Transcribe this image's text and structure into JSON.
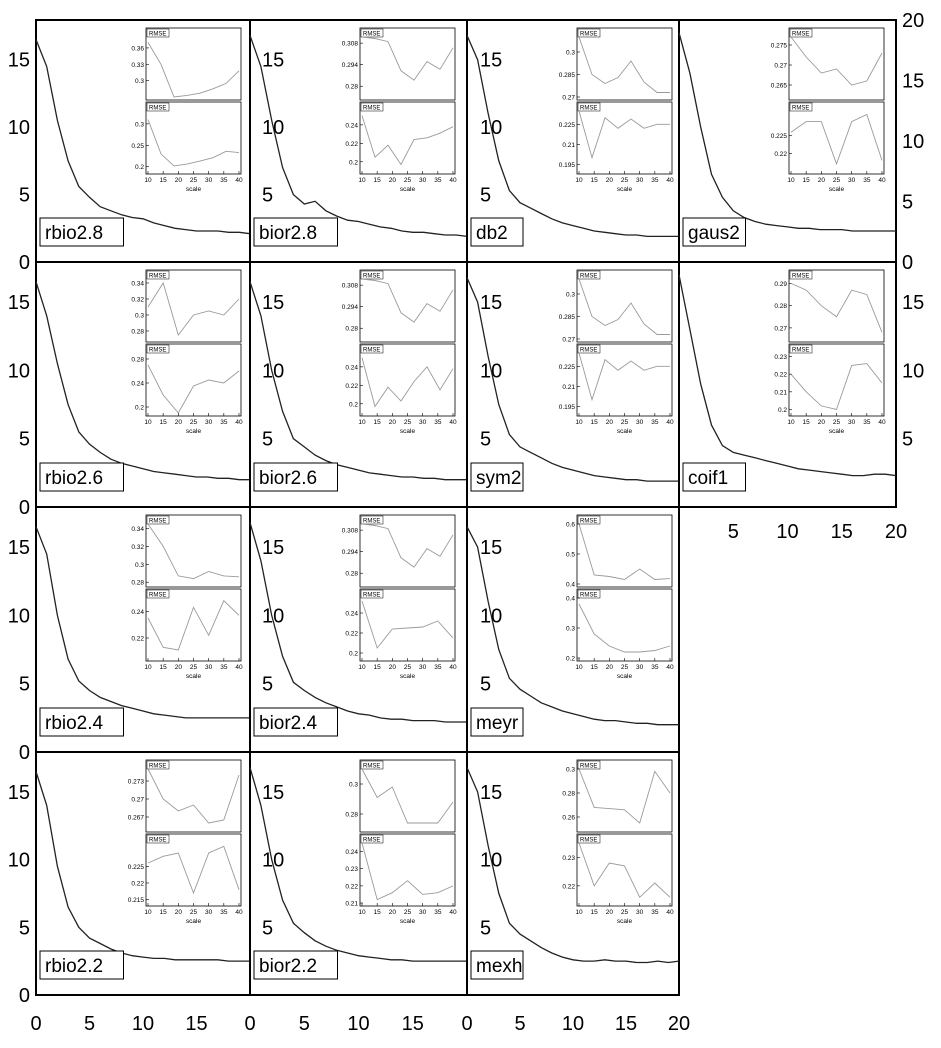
{
  "chart_data": {
    "type": "line",
    "main_x_ticks": [
      0,
      5,
      10,
      15
    ],
    "main_x_ticks_20": [
      5,
      10,
      15,
      20
    ],
    "main_x_ticks_0_20": [
      0,
      5,
      10,
      15,
      20
    ],
    "main_y_ticks": [
      0,
      5,
      10,
      15
    ],
    "main_y_ticks_right": [
      0,
      5,
      10,
      15,
      20
    ],
    "main_y_ticks_right_17": [
      5,
      10,
      15
    ],
    "inset_x_ticks": [
      10,
      15,
      20,
      25,
      30,
      35,
      40
    ],
    "inset_xlabel": "scale",
    "inset_tag": "RMSE",
    "panels": [
      {
        "id": "rbio2.8",
        "label": "rbio2.8",
        "curve": [
          16.5,
          14.5,
          10.5,
          7.5,
          5.6,
          4.8,
          4.1,
          3.8,
          3.5,
          3.3,
          3.2,
          2.9,
          2.7,
          2.5,
          2.4,
          2.3,
          2.3,
          2.3,
          2.2,
          2.2,
          2.1
        ],
        "inset_top": {
          "ticks": [
            0.36,
            0.33,
            0.3
          ],
          "ylim": [
            0.27,
            0.38
          ],
          "values": [
            0.37,
            0.33,
            0.27,
            0.273,
            0.277,
            0.285,
            0.295,
            0.318
          ]
        },
        "inset_bottom": {
          "ticks": [
            0.3,
            0.25,
            0.2
          ],
          "ylim": [
            0.19,
            0.33
          ],
          "values": [
            0.31,
            0.23,
            0.202,
            0.206,
            0.213,
            0.221,
            0.236,
            0.233
          ]
        }
      },
      {
        "id": "bior2.8",
        "label": "bior2.8",
        "curve": [
          16.8,
          14.5,
          10.5,
          7,
          5,
          4.3,
          4.5,
          3.8,
          3.4,
          3.1,
          3,
          2.8,
          2.6,
          2.5,
          2.3,
          2.2,
          2.2,
          2.1,
          2,
          2,
          1.9
        ],
        "inset_top": {
          "ticks": [
            0.308,
            0.294,
            0.28
          ],
          "ylim": [
            0.273,
            0.312
          ],
          "values": [
            0.312,
            0.311,
            0.309,
            0.29,
            0.284,
            0.296,
            0.291,
            0.305
          ]
        },
        "inset_bottom": {
          "ticks": [
            0.24,
            0.22,
            0.2
          ],
          "ylim": [
            0.19,
            0.255
          ],
          "values": [
            0.25,
            0.205,
            0.218,
            0.197,
            0.224,
            0.226,
            0.231,
            0.238
          ]
        }
      },
      {
        "id": "db2",
        "label": "db2",
        "curve": [
          16.8,
          15,
          11,
          7.5,
          5.3,
          4.4,
          4,
          3.6,
          3.2,
          2.9,
          2.7,
          2.5,
          2.3,
          2.2,
          2.1,
          2,
          2,
          1.9,
          1.9,
          1.9,
          1.9
        ],
        "inset_top": {
          "ticks": [
            0.3,
            0.285,
            0.27
          ],
          "ylim": [
            0.27,
            0.31
          ],
          "values": [
            0.31,
            0.285,
            0.279,
            0.283,
            0.294,
            0.28,
            0.273,
            0.273
          ]
        },
        "inset_bottom": {
          "ticks": [
            0.225,
            0.21,
            0.195
          ],
          "ylim": [
            0.19,
            0.235
          ],
          "values": [
            0.235,
            0.2,
            0.23,
            0.222,
            0.229,
            0.222,
            0.225,
            0.225
          ]
        }
      },
      {
        "id": "gaus2",
        "label": "gaus2",
        "curve": [
          17,
          14,
          10,
          6.5,
          4.8,
          3.8,
          3.3,
          3,
          2.8,
          2.7,
          2.6,
          2.5,
          2.5,
          2.4,
          2.4,
          2.4,
          2.3,
          2.3,
          2.3,
          2.3,
          2.3
        ],
        "inset_top": {
          "ticks": [
            0.275,
            0.27,
            0.265
          ],
          "ylim": [
            0.262,
            0.277
          ],
          "values": [
            0.277,
            0.272,
            0.268,
            0.269,
            0.265,
            0.266,
            0.273
          ]
        },
        "inset_bottom": {
          "ticks": [
            0.225,
            0.22
          ],
          "ylim": [
            0.215,
            0.232
          ],
          "values": [
            0.226,
            0.229,
            0.229,
            0.217,
            0.229,
            0.231,
            0.218
          ]
        }
      },
      {
        "id": "rbio2.6",
        "label": "rbio2.6",
        "curve": [
          16.5,
          14,
          10.5,
          7.5,
          5.5,
          4.6,
          4,
          3.5,
          3.2,
          3,
          2.8,
          2.6,
          2.5,
          2.4,
          2.3,
          2.2,
          2.2,
          2.1,
          2.1,
          2,
          2
        ],
        "inset_top": {
          "ticks": [
            0.34,
            0.32,
            0.3,
            0.28
          ],
          "ylim": [
            0.27,
            0.345
          ],
          "values": [
            0.31,
            0.34,
            0.275,
            0.3,
            0.305,
            0.3,
            0.32
          ]
        },
        "inset_bottom": {
          "ticks": [
            0.28,
            0.24,
            0.2
          ],
          "ylim": [
            0.19,
            0.29
          ],
          "values": [
            0.27,
            0.22,
            0.19,
            0.235,
            0.245,
            0.24,
            0.26
          ]
        }
      },
      {
        "id": "bior2.6",
        "label": "bior2.6",
        "curve": [
          16.5,
          14,
          10,
          7,
          5,
          4.4,
          3.8,
          3.4,
          3.1,
          2.9,
          2.7,
          2.5,
          2.4,
          2.3,
          2.2,
          2.2,
          2.1,
          2.1,
          2,
          2,
          2
        ],
        "inset_top": {
          "ticks": [
            0.308,
            0.294,
            0.28
          ],
          "ylim": [
            0.273,
            0.312
          ],
          "values": [
            0.312,
            0.311,
            0.309,
            0.29,
            0.284,
            0.296,
            0.291,
            0.305
          ]
        },
        "inset_bottom": {
          "ticks": [
            0.24,
            0.22,
            0.2
          ],
          "ylim": [
            0.19,
            0.255
          ],
          "values": [
            0.25,
            0.197,
            0.218,
            0.203,
            0.224,
            0.24,
            0.215,
            0.238
          ]
        }
      },
      {
        "id": "sym2",
        "label": "sym2",
        "curve": [
          16.8,
          15,
          11,
          7.5,
          5.3,
          4.4,
          4,
          3.6,
          3.2,
          2.9,
          2.7,
          2.5,
          2.3,
          2.2,
          2.1,
          2,
          2,
          1.9,
          1.9,
          1.9,
          1.9
        ],
        "inset_top": {
          "ticks": [
            0.3,
            0.285,
            0.27
          ],
          "ylim": [
            0.27,
            0.31
          ],
          "values": [
            0.31,
            0.285,
            0.279,
            0.283,
            0.294,
            0.28,
            0.273,
            0.273
          ]
        },
        "inset_bottom": {
          "ticks": [
            0.225,
            0.21,
            0.195
          ],
          "ylim": [
            0.19,
            0.235
          ],
          "values": [
            0.235,
            0.2,
            0.23,
            0.222,
            0.229,
            0.222,
            0.225,
            0.225
          ]
        }
      },
      {
        "id": "coif1",
        "label": "coif1",
        "curve": [
          17,
          13,
          9,
          6,
          4.5,
          4,
          3.8,
          3.6,
          3.4,
          3.2,
          3,
          2.8,
          2.7,
          2.6,
          2.5,
          2.4,
          2.3,
          2.3,
          2.4,
          2.4,
          2.3
        ],
        "inset_top": {
          "ticks": [
            0.29,
            0.28,
            0.27
          ],
          "ylim": [
            0.265,
            0.292
          ],
          "values": [
            0.29,
            0.287,
            0.28,
            0.275,
            0.287,
            0.285,
            0.268
          ]
        },
        "inset_bottom": {
          "ticks": [
            0.23,
            0.22,
            0.21,
            0.2
          ],
          "ylim": [
            0.198,
            0.232
          ],
          "values": [
            0.22,
            0.21,
            0.202,
            0.2,
            0.225,
            0.226,
            0.215
          ]
        }
      },
      {
        "id": "rbio2.4",
        "label": "rbio2.4",
        "curve": [
          16.5,
          14.5,
          10,
          6.8,
          5.2,
          4.5,
          4,
          3.7,
          3.4,
          3.2,
          3,
          2.8,
          2.7,
          2.6,
          2.5,
          2.5,
          2.5,
          2.5,
          2.5,
          2.5,
          2.5
        ],
        "inset_top": {
          "ticks": [
            0.34,
            0.32,
            0.3,
            0.28
          ],
          "ylim": [
            0.278,
            0.345
          ],
          "values": [
            0.345,
            0.32,
            0.287,
            0.284,
            0.292,
            0.287,
            0.286
          ]
        },
        "inset_bottom": {
          "ticks": [
            0.24,
            0.22
          ],
          "ylim": [
            0.205,
            0.25
          ],
          "values": [
            0.235,
            0.213,
            0.211,
            0.243,
            0.222,
            0.248,
            0.237
          ]
        }
      },
      {
        "id": "bior2.4",
        "label": "bior2.4",
        "curve": [
          16.8,
          14,
          10,
          7,
          5.1,
          4.5,
          4,
          3.6,
          3.3,
          3,
          2.8,
          2.7,
          2.5,
          2.4,
          2.4,
          2.3,
          2.3,
          2.3,
          2.2,
          2.2,
          2.2
        ],
        "inset_top": {
          "ticks": [
            0.308,
            0.294,
            0.28
          ],
          "ylim": [
            0.273,
            0.312
          ],
          "values": [
            0.312,
            0.311,
            0.309,
            0.29,
            0.284,
            0.296,
            0.291,
            0.305
          ]
        },
        "inset_bottom": {
          "ticks": [
            0.24,
            0.22,
            0.2
          ],
          "ylim": [
            0.195,
            0.255
          ],
          "values": [
            0.252,
            0.205,
            0.224,
            0.225,
            0.226,
            0.232,
            0.215
          ]
        }
      },
      {
        "id": "meyr",
        "label": "meyr",
        "curve": [
          16.5,
          15,
          11,
          7.5,
          5.4,
          4.6,
          4.1,
          3.6,
          3.3,
          3,
          2.8,
          2.6,
          2.4,
          2.3,
          2.3,
          2.2,
          2.1,
          2.1,
          2,
          2,
          2
        ],
        "inset_top": {
          "ticks": [
            0.6,
            0.5,
            0.4
          ],
          "ylim": [
            0.4,
            0.6
          ],
          "values": [
            0.6,
            0.43,
            0.425,
            0.415,
            0.45,
            0.415,
            0.418
          ]
        },
        "inset_bottom": {
          "ticks": [
            0.4,
            0.3,
            0.2
          ],
          "ylim": [
            0.2,
            0.4
          ],
          "values": [
            0.38,
            0.28,
            0.24,
            0.22,
            0.22,
            0.225,
            0.24
          ]
        }
      },
      {
        "id": "rbio2.2",
        "label": "rbio2.2",
        "curve": [
          16.5,
          14,
          9.5,
          6.5,
          5,
          4.2,
          3.8,
          3.4,
          3.1,
          2.9,
          2.8,
          2.7,
          2.7,
          2.6,
          2.6,
          2.6,
          2.6,
          2.6,
          2.5,
          2.5,
          2.5
        ],
        "inset_top": {
          "ticks": [
            0.273,
            0.27,
            0.267
          ],
          "ylim": [
            0.265,
            0.275
          ],
          "values": [
            0.275,
            0.27,
            0.268,
            0.269,
            0.266,
            0.2665,
            0.274
          ]
        },
        "inset_bottom": {
          "ticks": [
            0.225,
            0.22,
            0.215
          ],
          "ylim": [
            0.214,
            0.232
          ],
          "values": [
            0.226,
            0.228,
            0.229,
            0.217,
            0.229,
            0.231,
            0.218
          ]
        }
      },
      {
        "id": "bior2.2",
        "label": "bior2.2",
        "curve": [
          16.8,
          14,
          10,
          7,
          5.3,
          4.6,
          4,
          3.6,
          3.3,
          3.1,
          2.9,
          2.8,
          2.7,
          2.6,
          2.6,
          2.5,
          2.5,
          2.5,
          2.5,
          2.5,
          2.5
        ],
        "inset_top": {
          "ticks": [
            0.3,
            0.28
          ],
          "ylim": [
            0.27,
            0.31
          ],
          "values": [
            0.31,
            0.291,
            0.298,
            0.274,
            0.274,
            0.274,
            0.288
          ]
        },
        "inset_bottom": {
          "ticks": [
            0.24,
            0.23,
            0.22,
            0.21
          ],
          "ylim": [
            0.21,
            0.245
          ],
          "values": [
            0.245,
            0.212,
            0.216,
            0.223,
            0.215,
            0.216,
            0.22
          ]
        }
      },
      {
        "id": "mexh",
        "label": "mexh",
        "curve": [
          16.8,
          15,
          11,
          7.5,
          5.3,
          4.5,
          4,
          3.5,
          3.1,
          2.8,
          2.6,
          2.5,
          2.5,
          2.6,
          2.5,
          2.5,
          2.4,
          2.4,
          2.5,
          2.4,
          2.5
        ],
        "inset_top": {
          "ticks": [
            0.3,
            0.28,
            0.26
          ],
          "ylim": [
            0.25,
            0.3
          ],
          "values": [
            0.3,
            0.268,
            0.267,
            0.266,
            0.255,
            0.298,
            0.28
          ]
        },
        "inset_bottom": {
          "ticks": [
            0.23,
            0.22
          ],
          "ylim": [
            0.214,
            0.235
          ],
          "values": [
            0.235,
            0.22,
            0.228,
            0.227,
            0.216,
            0.221,
            0.216
          ]
        }
      }
    ]
  }
}
